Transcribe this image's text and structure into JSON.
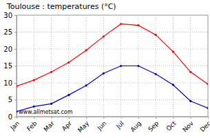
{
  "chart_data": {
    "type": "line",
    "title": "Toulouse : temperatures (°C)",
    "categories": [
      "Jan",
      "Feb",
      "Mar",
      "Apr",
      "May",
      "Jun",
      "Jul",
      "Aug",
      "Sep",
      "Oct",
      "Nov",
      "Dec"
    ],
    "series": [
      {
        "color": "#ff0000",
        "marker": "circle",
        "values": [
          9,
          10.8,
          13.2,
          16,
          19.6,
          23.7,
          27.4,
          27,
          24.2,
          19.2,
          13.2,
          9.6
        ]
      },
      {
        "color": "#0000cc",
        "marker": "circle",
        "values": [
          1.5,
          3,
          3.8,
          6.4,
          9.2,
          12.8,
          15,
          15,
          12.6,
          9.4,
          4.6,
          2.5
        ]
      }
    ],
    "ylim": [
      0,
      30
    ],
    "yticks": [
      0,
      5,
      10,
      15,
      20,
      25,
      30
    ],
    "grid": true,
    "annotations": [
      "www.allmetsat.com"
    ]
  }
}
